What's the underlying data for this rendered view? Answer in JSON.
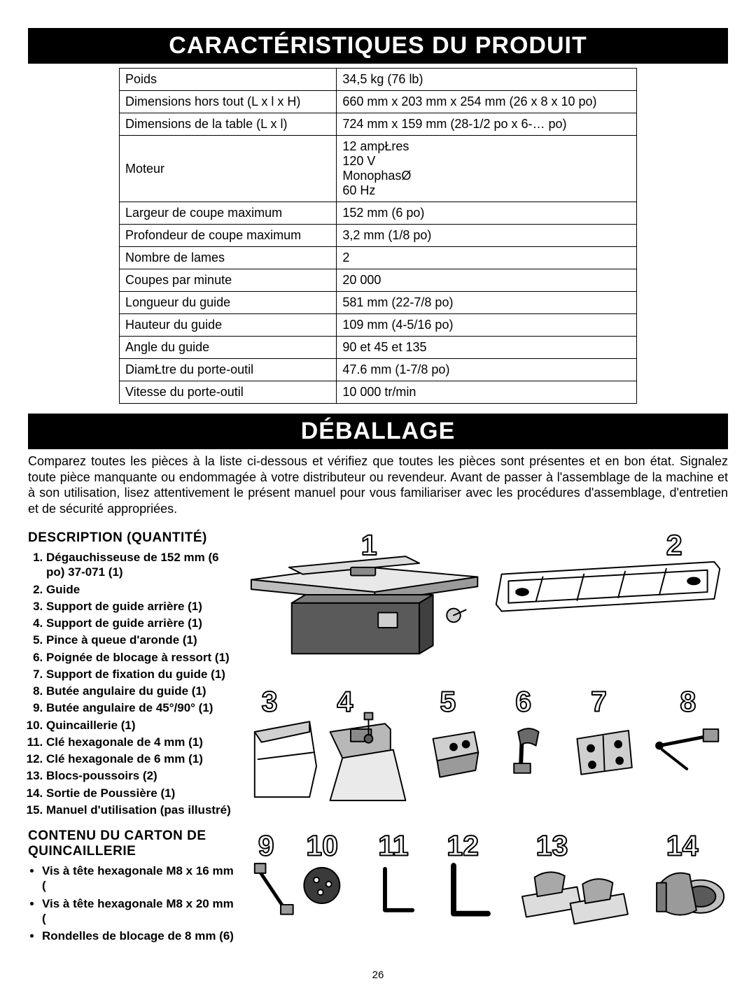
{
  "page_number": "26",
  "headings": {
    "spec_band": "CARACTÉRISTIQUES DU PRODUIT",
    "unpack_band": "DÉBALLAGE",
    "desc_qty": "DESCRIPTION (QUANTITÉ)",
    "hardware_box": "CONTENU DU CARTON DE QUINCAILLERIE"
  },
  "intro_paragraph": "Comparez toutes les pièces à la liste ci-dessous et vérifiez que toutes les pièces sont présentes et en bon état. Signalez toute pièce manquante ou endommagée à votre distributeur ou revendeur. Avant de passer à l'assemblage de la machine et à son utilisation, lisez attentivement le présent manuel pour vous familiariser avec les procédures d'assemblage, d'entretien et de sécurité appropriées.",
  "spec_table": [
    {
      "label": "Poids",
      "value": "34,5 kg (76 lb)"
    },
    {
      "label": "Dimensions hors tout (L x l x H)",
      "value": "660 mm x 203 mm x 254 mm (26 x 8 x 10 po)"
    },
    {
      "label": "Dimensions de la table (L x l)",
      "value": "724 mm x 159 mm (28-1/2 po x 6-… po)"
    },
    {
      "label": "Moteur",
      "value": "12 ampŁres\n120 V\nMonophasØ\n60 Hz"
    },
    {
      "label": "Largeur de coupe maximum",
      "value": "152 mm (6 po)"
    },
    {
      "label": "Profondeur de coupe maximum",
      "value": "3,2 mm (1/8 po)"
    },
    {
      "label": "Nombre de lames",
      "value": "2"
    },
    {
      "label": "Coupes par minute",
      "value": "20 000"
    },
    {
      "label": "Longueur du guide",
      "value": "581 mm (22-7/8 po)"
    },
    {
      "label": "Hauteur du guide",
      "value": "109 mm (4-5/16 po)"
    },
    {
      "label": "Angle du guide",
      "value": "90  et 45  et 135"
    },
    {
      "label": "DiamŁtre du porte-outil",
      "value": "47.6 mm (1-7/8 po)"
    },
    {
      "label": "Vitesse du porte-outil",
      "value": "10 000 tr/min"
    }
  ],
  "parts_list": [
    "Dégauchisseuse de 152 mm (6 po) 37-071 (1)",
    "Guide",
    "Support de guide arrière (1)",
    "Support de guide arrière (1)",
    "Pince à queue d'aronde (1)",
    "Poignée de blocage à ressort (1)",
    "Support de fixation du guide (1)",
    "Butée angulaire du guide (1)",
    "Butée angulaire de 45°/90° (1)",
    "Quincaillerie (1)",
    "Clé hexagonale de 4 mm (1)",
    "Clé hexagonale de 6 mm (1)",
    "Blocs-poussoirs (2)",
    "Sortie de Poussière (1)",
    "Manuel d'utilisation (pas illustré)"
  ],
  "hardware_list": [
    "Vis à tête hexagonale M8 x 16 mm (",
    "Vis à tête hexagonale M8 x 20 mm (",
    "Rondelles de blocage de 8 mm (6)"
  ],
  "diagram": {
    "labels": [
      "1",
      "2",
      "3",
      "4",
      "5",
      "6",
      "7",
      "8",
      "9",
      "10",
      "11",
      "12",
      "13",
      "14"
    ],
    "stroke": "#000000",
    "fill_light": "#bdbdbd",
    "fill_dark": "#595959",
    "label_fontsize": 42
  }
}
